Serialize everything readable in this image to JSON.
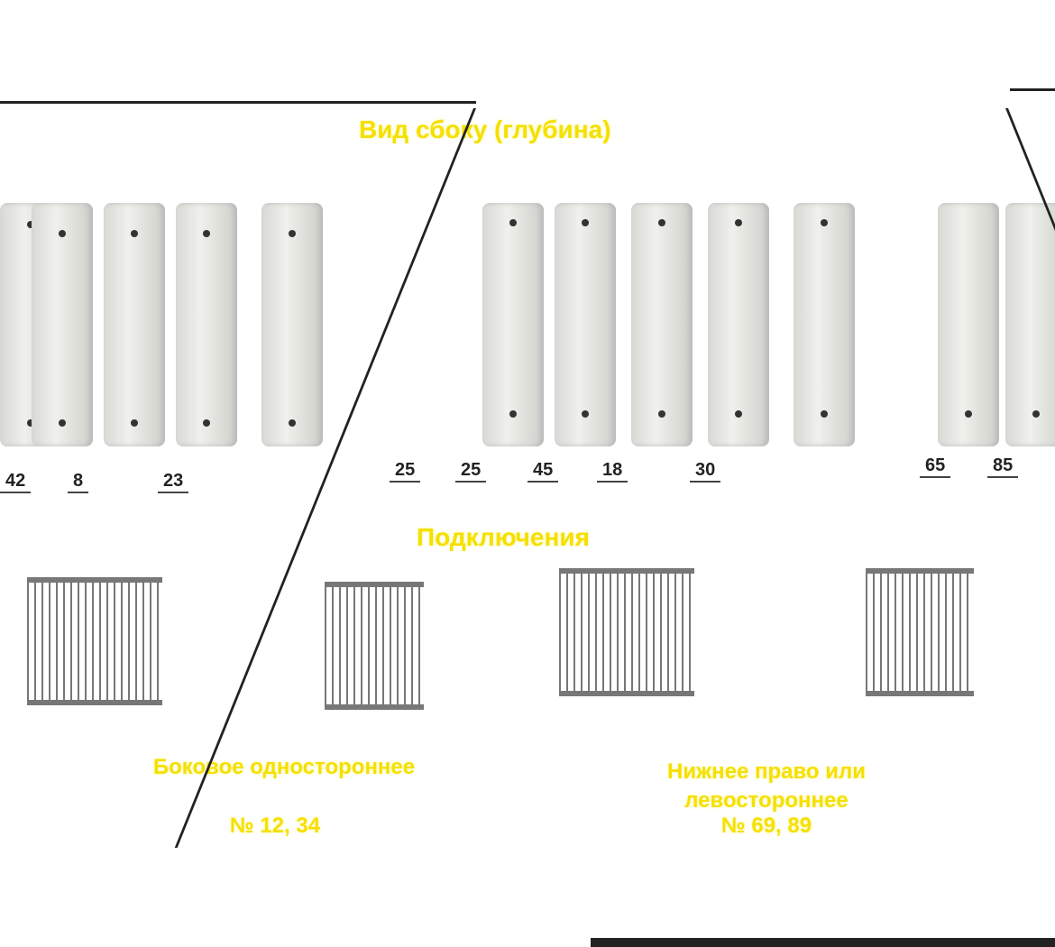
{
  "side_view": {
    "title": "Вид сбоку (глубина)"
  },
  "dimensions": {
    "left": [
      "42",
      "8",
      "23"
    ],
    "center": [
      "25",
      "25",
      "45",
      "18",
      "30"
    ],
    "right": [
      "65",
      "85"
    ]
  },
  "connections": {
    "title": "Подключения",
    "items": [
      {
        "label": "Боковое одностороннее",
        "numbers": "№ 12, 34"
      },
      {
        "label": "Нижнее право или левостороннее",
        "numbers": "№ 69, 89"
      }
    ]
  },
  "colors": {
    "heading": "#f5e000",
    "radiator": "#e6e6e2",
    "frame": "#222222"
  }
}
